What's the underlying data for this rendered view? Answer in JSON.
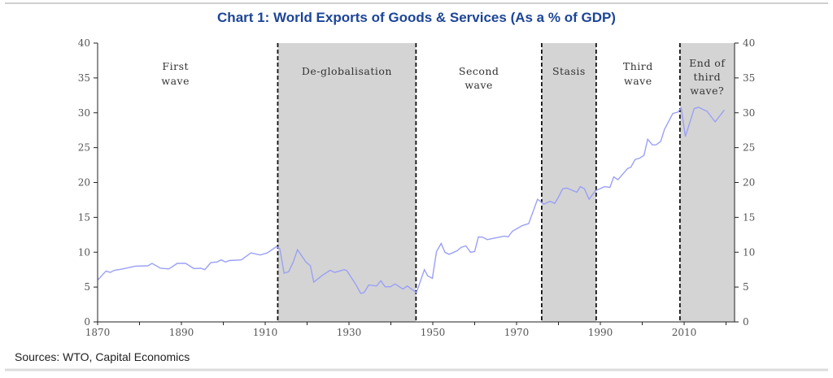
{
  "chart_data": {
    "type": "line",
    "title": "Chart 1: World Exports of Goods & Services (As a % of GDP)",
    "source": "Sources: WTO, Capital Economics",
    "xlabel": "",
    "ylabel": "",
    "xlim": [
      1870,
      2022
    ],
    "ylim": [
      0,
      40
    ],
    "x_ticks": [
      "1870",
      "1890",
      "1910",
      "1930",
      "1950",
      "1970",
      "1990",
      "2010"
    ],
    "y_ticks_left": [
      "0",
      "5",
      "10",
      "15",
      "20",
      "25",
      "30",
      "35",
      "40"
    ],
    "y_ticks_right": [
      "0",
      "5",
      "10",
      "15",
      "20",
      "25",
      "30",
      "35",
      "40"
    ],
    "grid": false,
    "line_color": "#9aa0f5",
    "shade_color": "#d4d4d4",
    "regions": [
      {
        "label_lines": [
          "First",
          "wave"
        ],
        "start": 1870,
        "end": 1913,
        "shaded": false
      },
      {
        "label_lines": [
          "De-globalisation"
        ],
        "start": 1913,
        "end": 1946,
        "shaded": true
      },
      {
        "label_lines": [
          "Second",
          "wave"
        ],
        "start": 1946,
        "end": 1976,
        "shaded": false
      },
      {
        "label_lines": [
          "Stasis"
        ],
        "start": 1976,
        "end": 1989,
        "shaded": true
      },
      {
        "label_lines": [
          "Third",
          "wave"
        ],
        "start": 1989,
        "end": 2009,
        "shaded": false
      },
      {
        "label_lines": [
          "End of",
          "third",
          "wave?"
        ],
        "start": 2009,
        "end": 2022,
        "shaded": true
      }
    ],
    "series": [
      {
        "x": [
          1870,
          1872,
          1873,
          1874,
          1876,
          1879,
          1882,
          1883,
          1885,
          1887,
          1889,
          1891,
          1893,
          1894.6,
          1895.6,
          1897,
          1898.5,
          1899.5,
          1900.5,
          1901.5,
          1904.3,
          1906.6,
          1908.8,
          1910.5,
          1912.7,
          1913.5,
          1914.5,
          1915.6,
          1916.7,
          1917.7,
          1919.7,
          1920.8,
          1921.6,
          1923.7,
          1925.5,
          1926.6,
          1928.9,
          1929.5,
          1931.5,
          1932.8,
          1933.6,
          1934.7,
          1936.6,
          1937.6,
          1938.6,
          1939.9,
          1941,
          1942.9,
          1943.9,
          1946.1,
          1948,
          1948.8,
          1949.9,
          1950.9,
          1952,
          1952.9,
          1953.9,
          1955.8,
          1956.8,
          1957.9,
          1959,
          1960,
          1960.9,
          1961.9,
          1963,
          1964.6,
          1967.1,
          1968,
          1969,
          1971.3,
          1972.9,
          1975,
          1976.5,
          1978,
          1979.1,
          1980,
          1981,
          1982,
          1984.4,
          1985.2,
          1986.2,
          1987.3,
          1988.8,
          1991,
          1992.3,
          1993.2,
          1994.2,
          1995.2,
          1996.5,
          1997.3,
          1998.3,
          1999.4,
          2000.4,
          2001.3,
          2002.4,
          2003.3,
          2004.4,
          2005.3,
          2007.3,
          2008.5,
          2009.3,
          2010.3,
          2012.4,
          2013.4,
          2015.5,
          2017.4,
          2019.6
        ],
        "values": [
          6.0,
          7.3,
          7.1,
          7.4,
          7.6,
          8.0,
          8.05,
          8.4,
          7.7,
          7.6,
          8.4,
          8.4,
          7.65,
          7.7,
          7.5,
          8.5,
          8.6,
          8.9,
          8.6,
          8.8,
          8.9,
          9.9,
          9.6,
          9.9,
          10.8,
          10.5,
          7.0,
          7.2,
          8.6,
          10.35,
          8.6,
          8.05,
          5.7,
          6.7,
          7.4,
          7.1,
          7.5,
          7.35,
          5.5,
          4.1,
          4.2,
          5.3,
          5.15,
          5.9,
          5.05,
          5.05,
          5.45,
          4.7,
          5.15,
          4.2,
          7.5,
          6.6,
          6.25,
          10.1,
          11.25,
          10.0,
          9.7,
          10.2,
          10.7,
          10.9,
          10.0,
          10.1,
          12.2,
          12.15,
          11.8,
          12.0,
          12.3,
          12.2,
          13.0,
          13.8,
          14.1,
          17.6,
          16.9,
          17.3,
          17.0,
          17.9,
          19.1,
          19.2,
          18.6,
          19.4,
          19.1,
          17.6,
          18.8,
          19.4,
          19.3,
          20.8,
          20.4,
          21.1,
          22.0,
          22.2,
          23.3,
          23.5,
          23.9,
          26.2,
          25.4,
          25.4,
          25.9,
          27.6,
          29.9,
          30.1,
          30.7,
          26.6,
          30.6,
          30.8,
          30.2,
          28.7,
          30.4
        ]
      }
    ]
  }
}
